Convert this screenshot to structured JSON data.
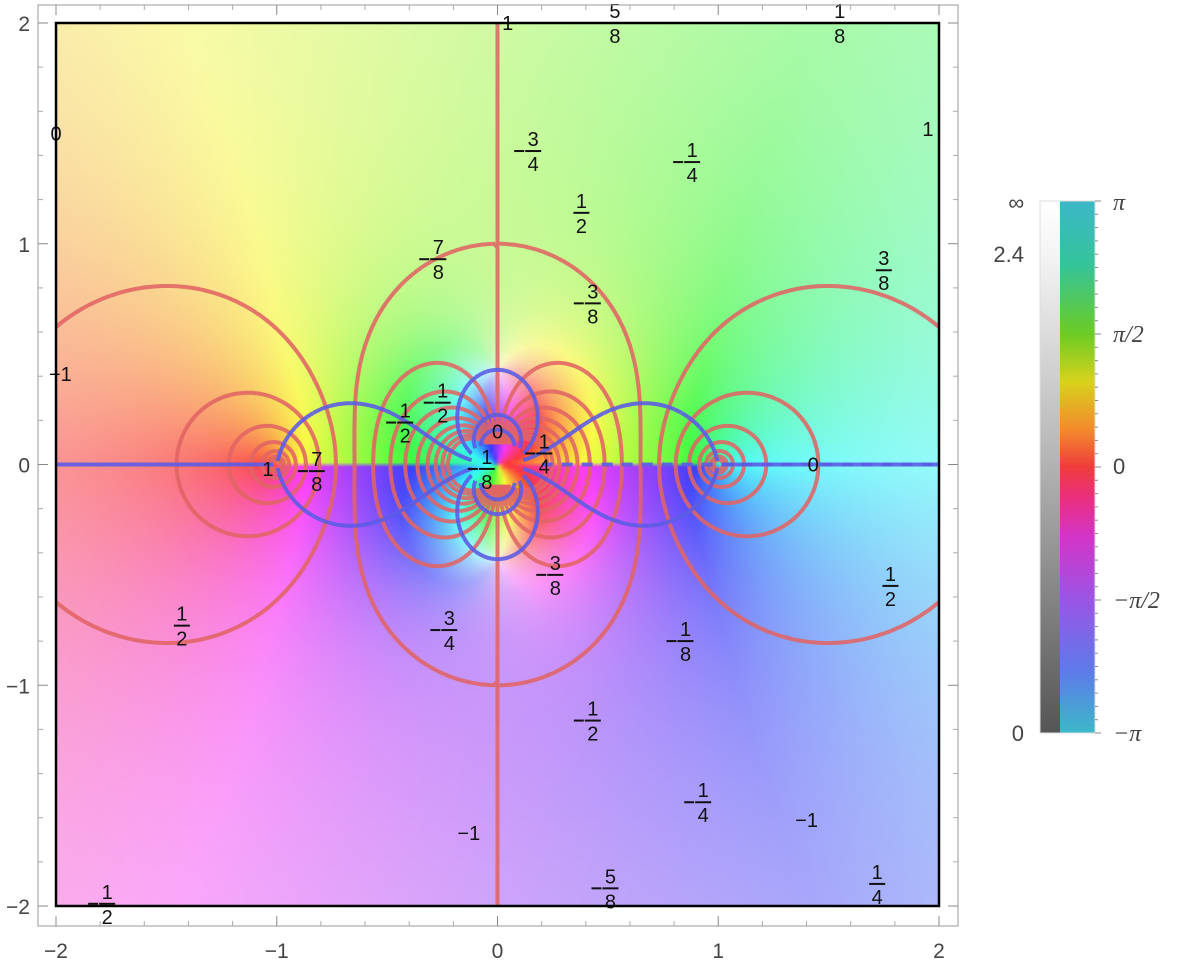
{
  "chart_data": {
    "type": "complex-contour-plot",
    "title": "",
    "xlabel": "",
    "ylabel": "",
    "xlim": [
      -2,
      2
    ],
    "ylim": [
      -2,
      2
    ],
    "x_ticks": [
      "−2",
      "−1",
      "0",
      "1",
      "2"
    ],
    "y_ticks": [
      "−2",
      "−1",
      "0",
      "1",
      "2"
    ],
    "shading": "argument (hue) and modulus (brightness) of the function",
    "colorbar": {
      "modulus_labels": [
        "∞",
        "2.4",
        "0"
      ],
      "argument_labels": [
        "π",
        "π/2",
        "0",
        "−π/2",
        "−π"
      ]
    },
    "series": [
      {
        "style": "solid",
        "color": "#e06464",
        "levels": [
          -1,
          -0.875,
          -0.75,
          -0.625,
          -0.5,
          -0.375,
          -0.25,
          -0.125,
          0,
          0.125,
          0.25,
          0.375,
          0.5,
          0.625,
          0.75,
          0.875,
          1
        ]
      },
      {
        "style": "dashed",
        "color": "#5c5ce6",
        "levels": [
          -1,
          -0.5,
          0,
          0.5,
          1
        ]
      }
    ],
    "contour_labels": [
      {
        "x": 0.02,
        "y": 2.0,
        "text": "−1"
      },
      {
        "x": 0.5,
        "y": 2.0,
        "text": "−5/8"
      },
      {
        "x": 1.55,
        "y": 2.0,
        "text": "1/8"
      },
      {
        "x": -2.0,
        "y": 1.5,
        "text": "0"
      },
      {
        "x": 0.13,
        "y": 1.42,
        "text": "−3/4"
      },
      {
        "x": 0.85,
        "y": 1.37,
        "text": "−1/4"
      },
      {
        "x": 1.95,
        "y": 1.52,
        "text": "1"
      },
      {
        "x": 0.38,
        "y": 1.14,
        "text": "1/2"
      },
      {
        "x": -0.3,
        "y": 0.93,
        "text": "−7/8"
      },
      {
        "x": 1.75,
        "y": 0.88,
        "text": "3/8"
      },
      {
        "x": 0.4,
        "y": 0.73,
        "text": "−3/8"
      },
      {
        "x": -1.98,
        "y": 0.41,
        "text": "−1"
      },
      {
        "x": -0.45,
        "y": 0.19,
        "text": "−1/2"
      },
      {
        "x": -0.28,
        "y": 0.28,
        "text": "−1/2"
      },
      {
        "x": 0.0,
        "y": 0.15,
        "text": "0"
      },
      {
        "x": -1.04,
        "y": -0.02,
        "text": "1"
      },
      {
        "x": -0.85,
        "y": -0.03,
        "text": "−7/8"
      },
      {
        "x": -0.08,
        "y": -0.02,
        "text": "−1/8"
      },
      {
        "x": 0.18,
        "y": 0.05,
        "text": "−1/4"
      },
      {
        "x": 1.43,
        "y": 0.0,
        "text": "0"
      },
      {
        "x": 0.23,
        "y": -0.5,
        "text": "−3/8"
      },
      {
        "x": 1.78,
        "y": -0.55,
        "text": "1/2"
      },
      {
        "x": -1.43,
        "y": -0.73,
        "text": "1/2"
      },
      {
        "x": -0.25,
        "y": -0.75,
        "text": "−3/4"
      },
      {
        "x": 0.82,
        "y": -0.8,
        "text": "−1/8"
      },
      {
        "x": 0.4,
        "y": -1.16,
        "text": "−1/2"
      },
      {
        "x": 0.9,
        "y": -1.53,
        "text": "−1/4"
      },
      {
        "x": 1.4,
        "y": -1.61,
        "text": "−1"
      },
      {
        "x": -0.13,
        "y": -1.67,
        "text": "−1"
      },
      {
        "x": 1.72,
        "y": -1.9,
        "text": "1/4"
      },
      {
        "x": 0.48,
        "y": -1.92,
        "text": "−5/8"
      },
      {
        "x": -1.8,
        "y": -1.99,
        "text": "−1/2"
      }
    ]
  }
}
